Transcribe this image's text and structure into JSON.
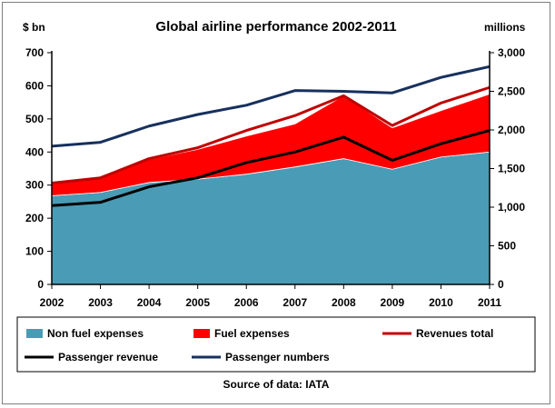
{
  "chart_data": {
    "type": "area",
    "title": "Global airline performance 2002-2011",
    "ylabel_left": "$ bn",
    "ylabel_right": "millions",
    "source": "Source of data: IATA",
    "categories": [
      "2002",
      "2003",
      "2004",
      "2005",
      "2006",
      "2007",
      "2008",
      "2009",
      "2010",
      "2011"
    ],
    "ylim_left": [
      0,
      700
    ],
    "ylim_right": [
      0,
      3000
    ],
    "yticks_left": [
      "0",
      "100",
      "200",
      "300",
      "400",
      "500",
      "600",
      "700"
    ],
    "yticks_right": [
      "0",
      "500",
      "1,000",
      "1,500",
      "2,000",
      "2,500",
      "3,000"
    ],
    "grid": false,
    "legend_position": "bottom",
    "series": [
      {
        "name": "Non fuel expenses",
        "kind": "area",
        "axis": "left",
        "color": "#4a9bb5",
        "values": [
          268,
          278,
          308,
          318,
          333,
          355,
          380,
          348,
          385,
          400
        ]
      },
      {
        "name": "Fuel expenses",
        "kind": "area",
        "axis": "left",
        "color": "#ff0000",
        "values": [
          40,
          43,
          70,
          90,
          115,
          130,
          190,
          125,
          140,
          175
        ]
      },
      {
        "name": "Revenues total",
        "kind": "line",
        "axis": "left",
        "color": "#c00000",
        "values": [
          306,
          322,
          380,
          413,
          465,
          510,
          570,
          480,
          548,
          595
        ]
      },
      {
        "name": "Passenger revenue",
        "kind": "line",
        "axis": "left",
        "color": "#000000",
        "values": [
          238,
          248,
          295,
          322,
          368,
          400,
          445,
          375,
          425,
          465
        ]
      },
      {
        "name": "Passenger numbers",
        "kind": "line",
        "axis": "right",
        "color": "#17305e",
        "values": [
          1790,
          1840,
          2050,
          2200,
          2320,
          2510,
          2500,
          2480,
          2680,
          2820
        ]
      }
    ]
  }
}
